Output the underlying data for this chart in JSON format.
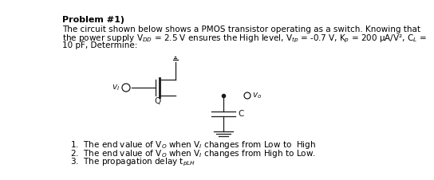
{
  "bg_color": "#ffffff",
  "text_color": "#000000",
  "font_size": 7.5,
  "title_font_size": 8.0,
  "circuit_color": "#1a1a1a",
  "title": "Problem #1)",
  "line1": "The circuit shown below shows a PMOS transistor operating as a switch. Knowing that",
  "line2": "the power supply V$_{DD}$ = 2.5 V ensures the High level, V$_{tp}$ = -0.7 V, K$_{p}$ = 200 μA/V², C$_{L}$ =",
  "line3": "10 pF, Determine:",
  "item1": "1.  The end value of V$_O$ when V$_I$ changes from Low to  High",
  "item2": "2.  The end value of V$_O$ when V$_I$ changes from High to Low.",
  "item3": "3.  The propagation delay t$_{pLH}$",
  "vi_label": "$v_I$",
  "vo_label": "$v_o$",
  "q_label": "Q",
  "c_label": "C"
}
